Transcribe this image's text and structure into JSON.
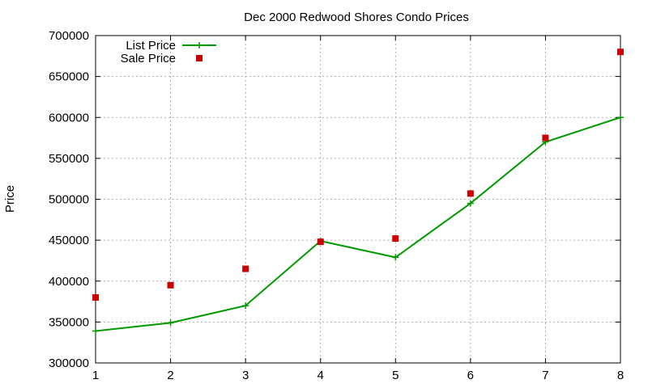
{
  "chart_data": {
    "type": "line",
    "title": "Dec 2000 Redwood Shores Condo Prices",
    "xlabel": "",
    "ylabel": "Price",
    "x": [
      1,
      2,
      3,
      4,
      5,
      6,
      7,
      8
    ],
    "xlim": [
      1,
      8
    ],
    "ylim": [
      300000,
      700000
    ],
    "xticks": [
      "1",
      "2",
      "3",
      "4",
      "5",
      "6",
      "7",
      "8"
    ],
    "yticks": [
      "300000",
      "350000",
      "400000",
      "450000",
      "500000",
      "550000",
      "600000",
      "650000",
      "700000"
    ],
    "grid": true,
    "legend_position": "top-left",
    "series": [
      {
        "name": "List Price",
        "style": "line-with-plus-markers",
        "color": "#009900",
        "values": [
          339000,
          349000,
          370000,
          449000,
          429000,
          495000,
          570000,
          600000
        ]
      },
      {
        "name": "Sale Price",
        "style": "square-markers",
        "color": "#cc0000",
        "values": [
          380000,
          395000,
          415000,
          448000,
          452000,
          507000,
          575000,
          680000
        ]
      }
    ]
  }
}
